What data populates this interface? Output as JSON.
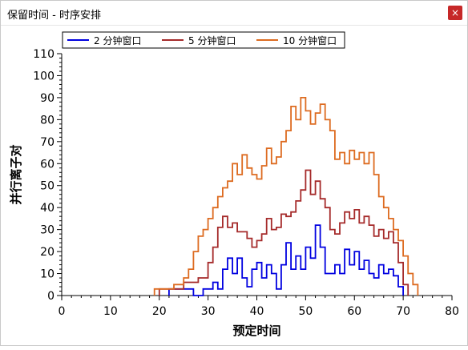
{
  "window": {
    "title": "保留时间 - 时序安排",
    "close_glyph": "×"
  },
  "chart_data": {
    "type": "line",
    "title": "",
    "xlabel": "预定时间",
    "ylabel": "并行离子对",
    "xlim": [
      0,
      80
    ],
    "ylim": [
      0,
      110
    ],
    "xticks": [
      0,
      10,
      20,
      30,
      40,
      50,
      60,
      70,
      80
    ],
    "yticks": [
      0,
      10,
      20,
      30,
      40,
      50,
      60,
      70,
      80,
      90,
      100,
      110
    ],
    "legend_position": "top",
    "series": [
      {
        "name": "2 分钟窗口",
        "color": "#0000e0",
        "points": [
          [
            22,
            0
          ],
          [
            22,
            3
          ],
          [
            27,
            3
          ],
          [
            27,
            0
          ],
          [
            29,
            0
          ],
          [
            29,
            3
          ],
          [
            31,
            3
          ],
          [
            31,
            6
          ],
          [
            32,
            6
          ],
          [
            32,
            3
          ],
          [
            33,
            3
          ],
          [
            33,
            12
          ],
          [
            34,
            12
          ],
          [
            34,
            17
          ],
          [
            35,
            17
          ],
          [
            35,
            10
          ],
          [
            36,
            10
          ],
          [
            36,
            17
          ],
          [
            37,
            17
          ],
          [
            37,
            8
          ],
          [
            38,
            8
          ],
          [
            38,
            4
          ],
          [
            39,
            4
          ],
          [
            39,
            12
          ],
          [
            40,
            12
          ],
          [
            40,
            15
          ],
          [
            41,
            15
          ],
          [
            41,
            8
          ],
          [
            42,
            8
          ],
          [
            42,
            14
          ],
          [
            43,
            14
          ],
          [
            43,
            10
          ],
          [
            44,
            10
          ],
          [
            44,
            3
          ],
          [
            45,
            3
          ],
          [
            45,
            14
          ],
          [
            46,
            14
          ],
          [
            46,
            24
          ],
          [
            47,
            24
          ],
          [
            47,
            12
          ],
          [
            48,
            12
          ],
          [
            48,
            18
          ],
          [
            49,
            18
          ],
          [
            49,
            12
          ],
          [
            50,
            12
          ],
          [
            50,
            22
          ],
          [
            51,
            22
          ],
          [
            51,
            17
          ],
          [
            52,
            17
          ],
          [
            52,
            32
          ],
          [
            53,
            32
          ],
          [
            53,
            22
          ],
          [
            54,
            22
          ],
          [
            54,
            10
          ],
          [
            56,
            10
          ],
          [
            56,
            14
          ],
          [
            57,
            14
          ],
          [
            57,
            10
          ],
          [
            58,
            10
          ],
          [
            58,
            21
          ],
          [
            59,
            21
          ],
          [
            59,
            14
          ],
          [
            60,
            14
          ],
          [
            60,
            20
          ],
          [
            61,
            20
          ],
          [
            61,
            12
          ],
          [
            62,
            12
          ],
          [
            62,
            16
          ],
          [
            63,
            16
          ],
          [
            63,
            10
          ],
          [
            64,
            10
          ],
          [
            64,
            8
          ],
          [
            65,
            8
          ],
          [
            65,
            14
          ],
          [
            66,
            14
          ],
          [
            66,
            10
          ],
          [
            67,
            10
          ],
          [
            67,
            12
          ],
          [
            68,
            12
          ],
          [
            68,
            9
          ],
          [
            69,
            9
          ],
          [
            69,
            4
          ],
          [
            70,
            4
          ],
          [
            70,
            0
          ]
        ]
      },
      {
        "name": "5 分钟窗口",
        "color": "#a52a2a",
        "points": [
          [
            20,
            0
          ],
          [
            20,
            3
          ],
          [
            25,
            3
          ],
          [
            25,
            6
          ],
          [
            28,
            6
          ],
          [
            28,
            8
          ],
          [
            30,
            8
          ],
          [
            30,
            15
          ],
          [
            31,
            15
          ],
          [
            31,
            22
          ],
          [
            32,
            22
          ],
          [
            32,
            31
          ],
          [
            33,
            31
          ],
          [
            33,
            36
          ],
          [
            34,
            36
          ],
          [
            34,
            31
          ],
          [
            35,
            31
          ],
          [
            35,
            33
          ],
          [
            36,
            33
          ],
          [
            36,
            29
          ],
          [
            38,
            29
          ],
          [
            38,
            26
          ],
          [
            39,
            26
          ],
          [
            39,
            22
          ],
          [
            40,
            22
          ],
          [
            40,
            25
          ],
          [
            41,
            25
          ],
          [
            41,
            28
          ],
          [
            42,
            28
          ],
          [
            42,
            35
          ],
          [
            43,
            35
          ],
          [
            43,
            30
          ],
          [
            44,
            30
          ],
          [
            44,
            31
          ],
          [
            45,
            31
          ],
          [
            45,
            37
          ],
          [
            46,
            37
          ],
          [
            46,
            36
          ],
          [
            47,
            36
          ],
          [
            47,
            38
          ],
          [
            48,
            38
          ],
          [
            48,
            43
          ],
          [
            49,
            43
          ],
          [
            49,
            48
          ],
          [
            50,
            48
          ],
          [
            50,
            57
          ],
          [
            51,
            57
          ],
          [
            51,
            46
          ],
          [
            52,
            46
          ],
          [
            52,
            52
          ],
          [
            53,
            52
          ],
          [
            53,
            44
          ],
          [
            54,
            44
          ],
          [
            54,
            40
          ],
          [
            55,
            40
          ],
          [
            55,
            30
          ],
          [
            56,
            30
          ],
          [
            56,
            28
          ],
          [
            57,
            28
          ],
          [
            57,
            33
          ],
          [
            58,
            33
          ],
          [
            58,
            38
          ],
          [
            59,
            38
          ],
          [
            59,
            35
          ],
          [
            60,
            35
          ],
          [
            60,
            39
          ],
          [
            61,
            39
          ],
          [
            61,
            33
          ],
          [
            62,
            33
          ],
          [
            62,
            36
          ],
          [
            63,
            36
          ],
          [
            63,
            32
          ],
          [
            64,
            32
          ],
          [
            64,
            27
          ],
          [
            65,
            27
          ],
          [
            65,
            30
          ],
          [
            66,
            30
          ],
          [
            66,
            26
          ],
          [
            67,
            26
          ],
          [
            67,
            29
          ],
          [
            68,
            29
          ],
          [
            68,
            24
          ],
          [
            69,
            24
          ],
          [
            69,
            15
          ],
          [
            70,
            15
          ],
          [
            70,
            5
          ],
          [
            71,
            5
          ],
          [
            71,
            0
          ]
        ]
      },
      {
        "name": "10 分钟窗口",
        "color": "#dd6b20",
        "points": [
          [
            19,
            0
          ],
          [
            19,
            3
          ],
          [
            23,
            3
          ],
          [
            23,
            5
          ],
          [
            25,
            5
          ],
          [
            25,
            8
          ],
          [
            26,
            8
          ],
          [
            26,
            12
          ],
          [
            27,
            12
          ],
          [
            27,
            20
          ],
          [
            28,
            20
          ],
          [
            28,
            27
          ],
          [
            29,
            27
          ],
          [
            29,
            30
          ],
          [
            30,
            30
          ],
          [
            30,
            35
          ],
          [
            31,
            35
          ],
          [
            31,
            40
          ],
          [
            32,
            40
          ],
          [
            32,
            45
          ],
          [
            33,
            45
          ],
          [
            33,
            49
          ],
          [
            34,
            49
          ],
          [
            34,
            52
          ],
          [
            35,
            52
          ],
          [
            35,
            60
          ],
          [
            36,
            60
          ],
          [
            36,
            55
          ],
          [
            37,
            55
          ],
          [
            37,
            64
          ],
          [
            38,
            64
          ],
          [
            38,
            58
          ],
          [
            39,
            58
          ],
          [
            39,
            55
          ],
          [
            40,
            55
          ],
          [
            40,
            53
          ],
          [
            41,
            53
          ],
          [
            41,
            59
          ],
          [
            42,
            59
          ],
          [
            42,
            67
          ],
          [
            43,
            67
          ],
          [
            43,
            60
          ],
          [
            44,
            60
          ],
          [
            44,
            63
          ],
          [
            45,
            63
          ],
          [
            45,
            70
          ],
          [
            46,
            70
          ],
          [
            46,
            75
          ],
          [
            47,
            75
          ],
          [
            47,
            86
          ],
          [
            48,
            86
          ],
          [
            48,
            80
          ],
          [
            49,
            80
          ],
          [
            49,
            90
          ],
          [
            50,
            90
          ],
          [
            50,
            84
          ],
          [
            51,
            84
          ],
          [
            51,
            78
          ],
          [
            52,
            78
          ],
          [
            52,
            83
          ],
          [
            53,
            83
          ],
          [
            53,
            87
          ],
          [
            54,
            87
          ],
          [
            54,
            80
          ],
          [
            55,
            80
          ],
          [
            55,
            75
          ],
          [
            56,
            75
          ],
          [
            56,
            62
          ],
          [
            57,
            62
          ],
          [
            57,
            65
          ],
          [
            58,
            65
          ],
          [
            58,
            60
          ],
          [
            59,
            60
          ],
          [
            59,
            66
          ],
          [
            60,
            66
          ],
          [
            60,
            62
          ],
          [
            61,
            62
          ],
          [
            61,
            65
          ],
          [
            62,
            65
          ],
          [
            62,
            60
          ],
          [
            63,
            60
          ],
          [
            63,
            65
          ],
          [
            64,
            65
          ],
          [
            64,
            55
          ],
          [
            65,
            55
          ],
          [
            65,
            45
          ],
          [
            66,
            45
          ],
          [
            66,
            40
          ],
          [
            67,
            40
          ],
          [
            67,
            35
          ],
          [
            68,
            35
          ],
          [
            68,
            30
          ],
          [
            69,
            30
          ],
          [
            69,
            25
          ],
          [
            70,
            25
          ],
          [
            70,
            18
          ],
          [
            71,
            18
          ],
          [
            71,
            10
          ],
          [
            72,
            10
          ],
          [
            72,
            5
          ],
          [
            73,
            5
          ],
          [
            73,
            0
          ]
        ]
      }
    ]
  }
}
